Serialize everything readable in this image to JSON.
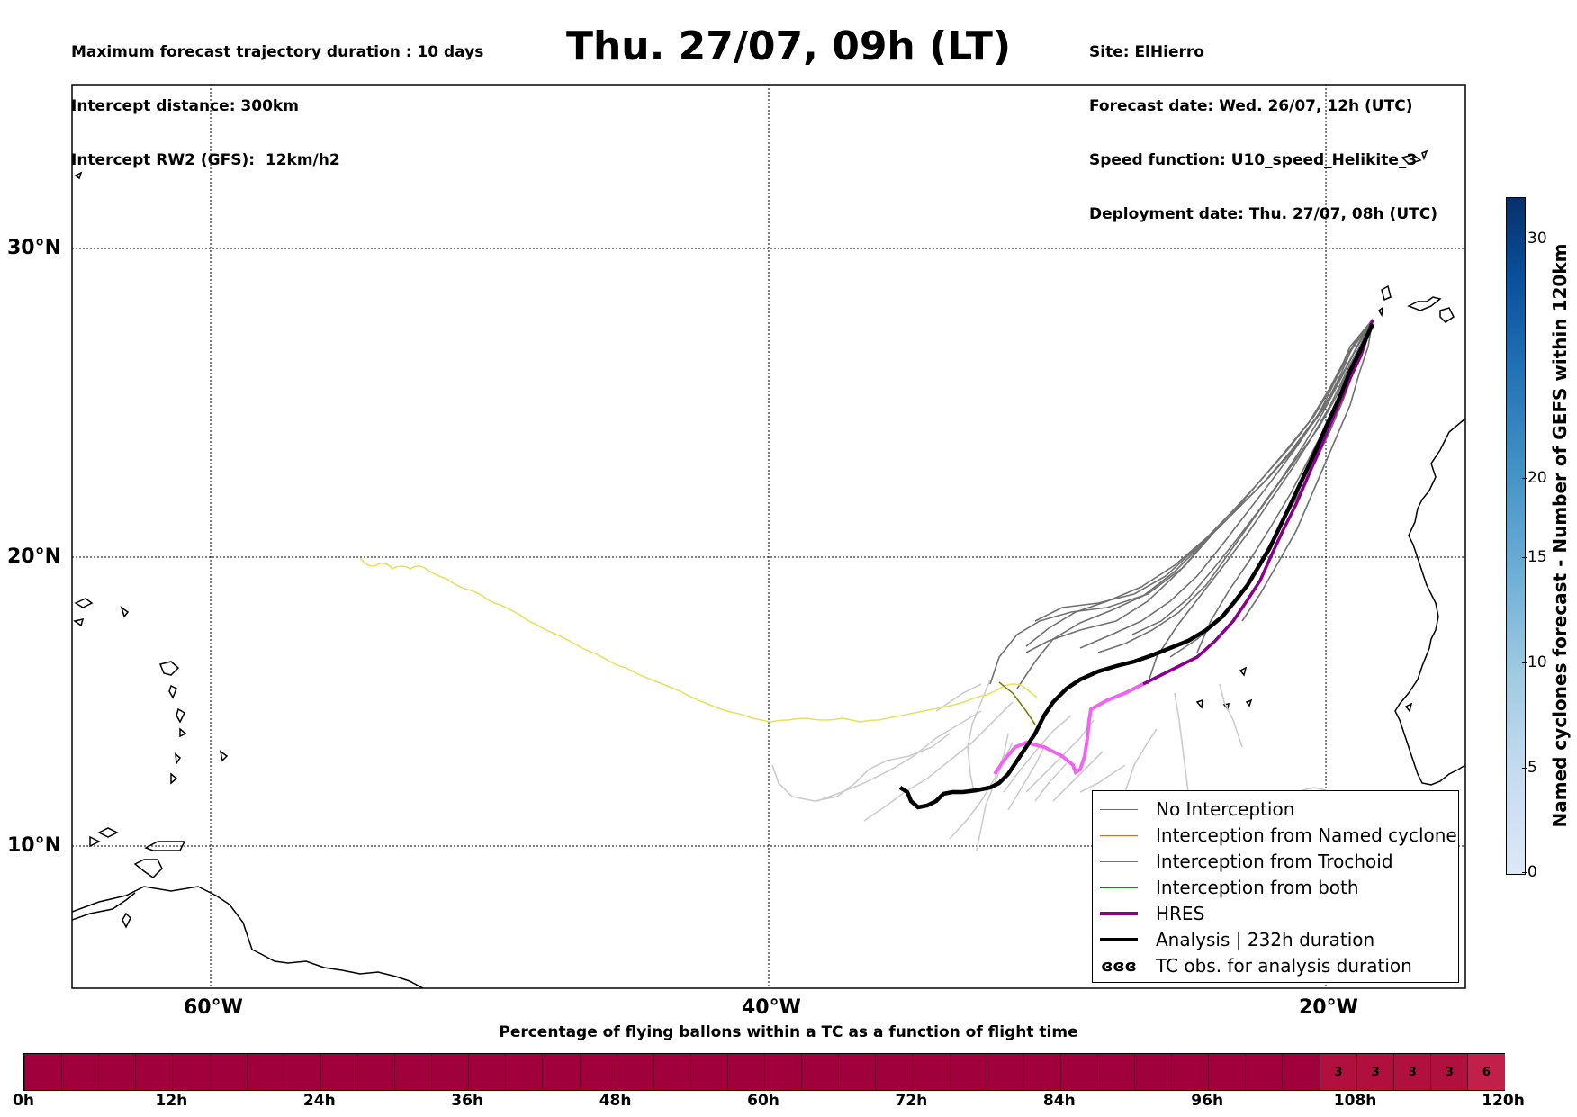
{
  "header": {
    "left_lines": [
      "Maximum forecast trajectory duration : 10 days",
      "Intercept distance: 300km",
      "Intercept RW2 (GFS):  12km/h2"
    ],
    "title": "Thu. 27/07, 09h (LT)",
    "right_lines": [
      "Site: ElHierro",
      "Forecast date: Wed. 26/07, 12h (UTC)",
      "Speed function: U10_speed_Helikite_3",
      "Deployment date: Thu. 27/07, 08h (UTC)"
    ]
  },
  "map": {
    "lat_labels": [
      "30°N",
      "20°N",
      "10°N"
    ],
    "lon_labels": [
      "60°W",
      "40°W",
      "20°W"
    ],
    "colors": {
      "no_interception": "#707070",
      "ensemble_light": "#cccccc",
      "named_cyclone": "#ff5a1e",
      "trochoid": "#808000",
      "both": "#208020",
      "hres": "#8b008b",
      "hres_light": "#ee66ee",
      "analysis": "#000000",
      "trochoid_track": "#e6e060"
    }
  },
  "legend": {
    "items": [
      {
        "label": "No Interception",
        "color": "#707070",
        "style": "thin"
      },
      {
        "label": "Interception from Named cyclone",
        "color": "#ff5a1e",
        "style": "thin"
      },
      {
        "label": "Interception from Trochoid",
        "color": "#808000",
        "style": "thin"
      },
      {
        "label": "Interception from both",
        "color": "#208020",
        "style": "thin"
      },
      {
        "label": "HRES",
        "color": "#8b008b",
        "style": "thick"
      },
      {
        "label": "Analysis | 232h duration",
        "color": "#000000",
        "style": "thick"
      },
      {
        "label": "TC obs. for analysis duration",
        "color": "#000000",
        "style": "symbol",
        "symbol": "ɞɞɞ"
      }
    ]
  },
  "colorbar": {
    "label": "Named cyclones forecast - Number of GEFS within 120km",
    "ticks": [
      "0",
      "5",
      "10",
      "15",
      "20",
      "30"
    ]
  },
  "progress": {
    "title": "Percentage of flying ballons within a TC as a function of flight time",
    "ticks": [
      "0h",
      "12h",
      "24h",
      "36h",
      "48h",
      "60h",
      "72h",
      "84h",
      "96h",
      "108h",
      "120h"
    ],
    "highlighted": [
      {
        "hour": 105,
        "value": "3"
      },
      {
        "hour": 108,
        "value": "3"
      },
      {
        "hour": 111,
        "value": "3"
      },
      {
        "hour": 114,
        "value": "3"
      },
      {
        "hour": 117,
        "value": "6"
      }
    ]
  }
}
